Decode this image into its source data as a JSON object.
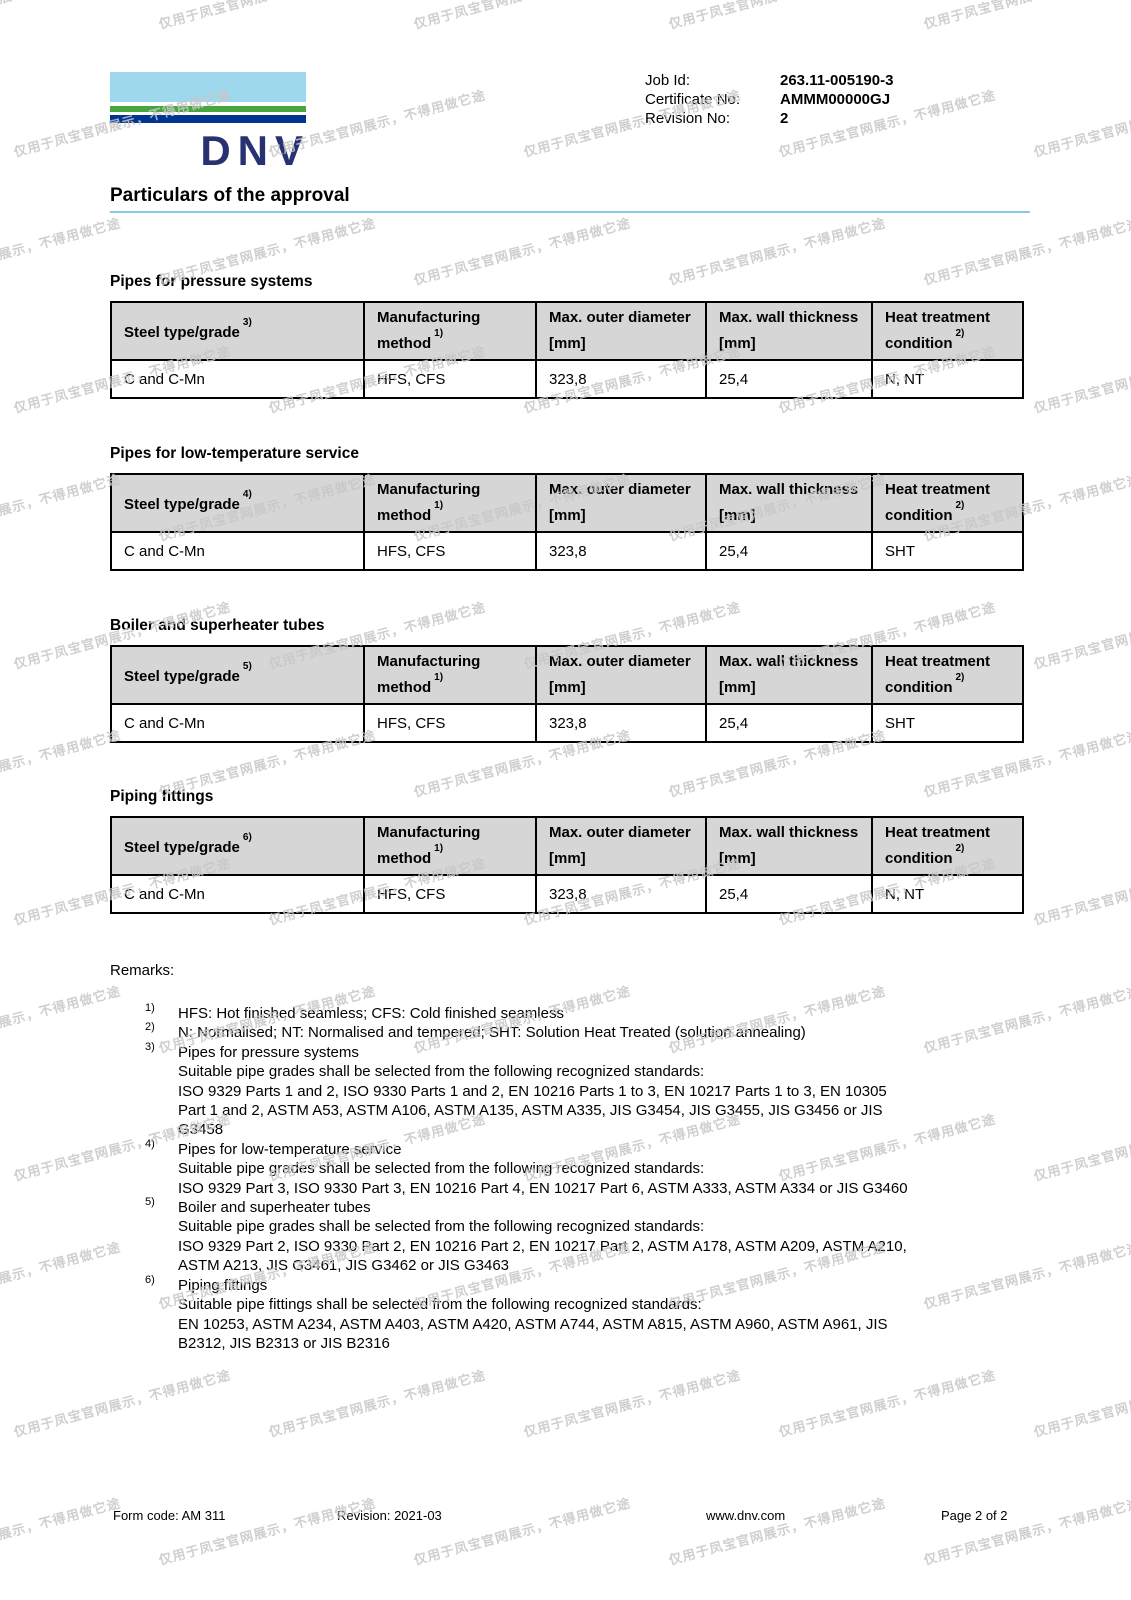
{
  "watermark": {
    "text": "仅用于凤宝官网展示，不得用做它途"
  },
  "header": {
    "logo_text": "DNV",
    "fields": [
      {
        "label": "Job Id:",
        "value": "263.11-005190-3"
      },
      {
        "label": "Certificate No:",
        "value": "AMMM00000GJ"
      },
      {
        "label": "Revision No:",
        "value": "2"
      }
    ]
  },
  "title": "Particulars of the approval",
  "tables": [
    {
      "section_title": "Pipes for pressure systems",
      "headers": [
        {
          "text": "Steel type/grade",
          "sup": "3)"
        },
        {
          "text": "Manufacturing method",
          "sup": "1)"
        },
        {
          "text": "Max. outer diameter [mm]",
          "sup": ""
        },
        {
          "text": "Max. wall thickness [mm]",
          "sup": ""
        },
        {
          "text": "Heat treatment condition",
          "sup": "2)"
        }
      ],
      "row": [
        "C and C-Mn",
        "HFS, CFS",
        "323,8",
        "25,4",
        "N, NT"
      ]
    },
    {
      "section_title": "Pipes for low-temperature service",
      "headers": [
        {
          "text": "Steel type/grade",
          "sup": "4)"
        },
        {
          "text": "Manufacturing method",
          "sup": "1)"
        },
        {
          "text": "Max. outer diameter [mm]",
          "sup": ""
        },
        {
          "text": "Max. wall thickness [mm]",
          "sup": ""
        },
        {
          "text": "Heat treatment condition",
          "sup": "2)"
        }
      ],
      "row": [
        "C and C-Mn",
        "HFS, CFS",
        "323,8",
        "25,4",
        "SHT"
      ]
    },
    {
      "section_title": "Boiler and superheater tubes",
      "headers": [
        {
          "text": "Steel type/grade",
          "sup": "5)"
        },
        {
          "text": "Manufacturing method",
          "sup": "1)"
        },
        {
          "text": "Max. outer diameter [mm]",
          "sup": ""
        },
        {
          "text": "Max. wall thickness [mm]",
          "sup": ""
        },
        {
          "text": "Heat treatment condition",
          "sup": "2)"
        }
      ],
      "row": [
        "C and C-Mn",
        "HFS, CFS",
        "323,8",
        "25,4",
        "SHT"
      ]
    },
    {
      "section_title": "Piping fittings",
      "headers": [
        {
          "text": "Steel type/grade",
          "sup": "6)"
        },
        {
          "text": "Manufacturing method",
          "sup": "1)"
        },
        {
          "text": "Max. outer diameter [mm]",
          "sup": ""
        },
        {
          "text": "Max. wall thickness [mm]",
          "sup": ""
        },
        {
          "text": "Heat treatment condition",
          "sup": "2)"
        }
      ],
      "row": [
        "C and C-Mn",
        "HFS, CFS",
        "323,8",
        "25,4",
        "N, NT"
      ]
    }
  ],
  "remarks": {
    "label": "Remarks:",
    "footnotes": [
      {
        "marker": "1)",
        "lines": [
          "HFS: Hot finished seamless; CFS: Cold finished seamless"
        ]
      },
      {
        "marker": "2)",
        "lines": [
          "N: Normalised; NT: Normalised and tempered; SHT: Solution Heat Treated (solution annealing)"
        ]
      },
      {
        "marker": "3)",
        "lines": [
          "Pipes for pressure systems",
          "Suitable pipe grades shall be selected from the following recognized standards:",
          "ISO 9329 Parts 1 and 2, ISO 9330 Parts 1 and 2, EN 10216 Parts 1 to 3, EN 10217 Parts 1 to 3, EN 10305",
          "Part 1 and 2, ASTM A53, ASTM A106, ASTM A135, ASTM A335, JIS G3454, JIS G3455, JIS G3456 or JIS",
          "G3458"
        ]
      },
      {
        "marker": "4)",
        "lines": [
          "Pipes for low-temperature service",
          "Suitable pipe grades shall be selected from the following recognized standards:",
          "ISO 9329 Part 3, ISO 9330 Part 3, EN 10216 Part 4, EN 10217 Part 6, ASTM A333, ASTM A334 or JIS G3460"
        ]
      },
      {
        "marker": "5)",
        "lines": [
          "Boiler and superheater tubes",
          "Suitable pipe grades shall be selected from the following recognized standards:",
          "ISO 9329 Part 2, ISO 9330 Part 2, EN 10216 Part 2, EN 10217 Part 2, ASTM A178, ASTM A209, ASTM A210,",
          "ASTM A213, JIS G3461, JIS G3462 or JIS G3463"
        ]
      },
      {
        "marker": "6)",
        "lines": [
          "Piping fittings",
          "Suitable pipe fittings shall be selected from the following recognized standards:",
          "EN 10253, ASTM A234, ASTM A403, ASTM A420, ASTM A744, ASTM A815, ASTM A960, ASTM A961, JIS",
          "B2312, JIS B2313 or JIS B2316"
        ]
      }
    ]
  },
  "footer": {
    "form_code": "Form code: AM 311",
    "revision": "Revision: 2021-03",
    "website": "www.dnv.com",
    "page": "Page 2 of 2"
  },
  "colors": {
    "logo_sky_blue": "#9ed8ec",
    "logo_green": "#47a63e",
    "logo_dark_blue": "#003591",
    "logo_word_blue": "#283272",
    "title_rule_blue": "#85cbe9",
    "table_header_gray": "#d6d6d6"
  }
}
